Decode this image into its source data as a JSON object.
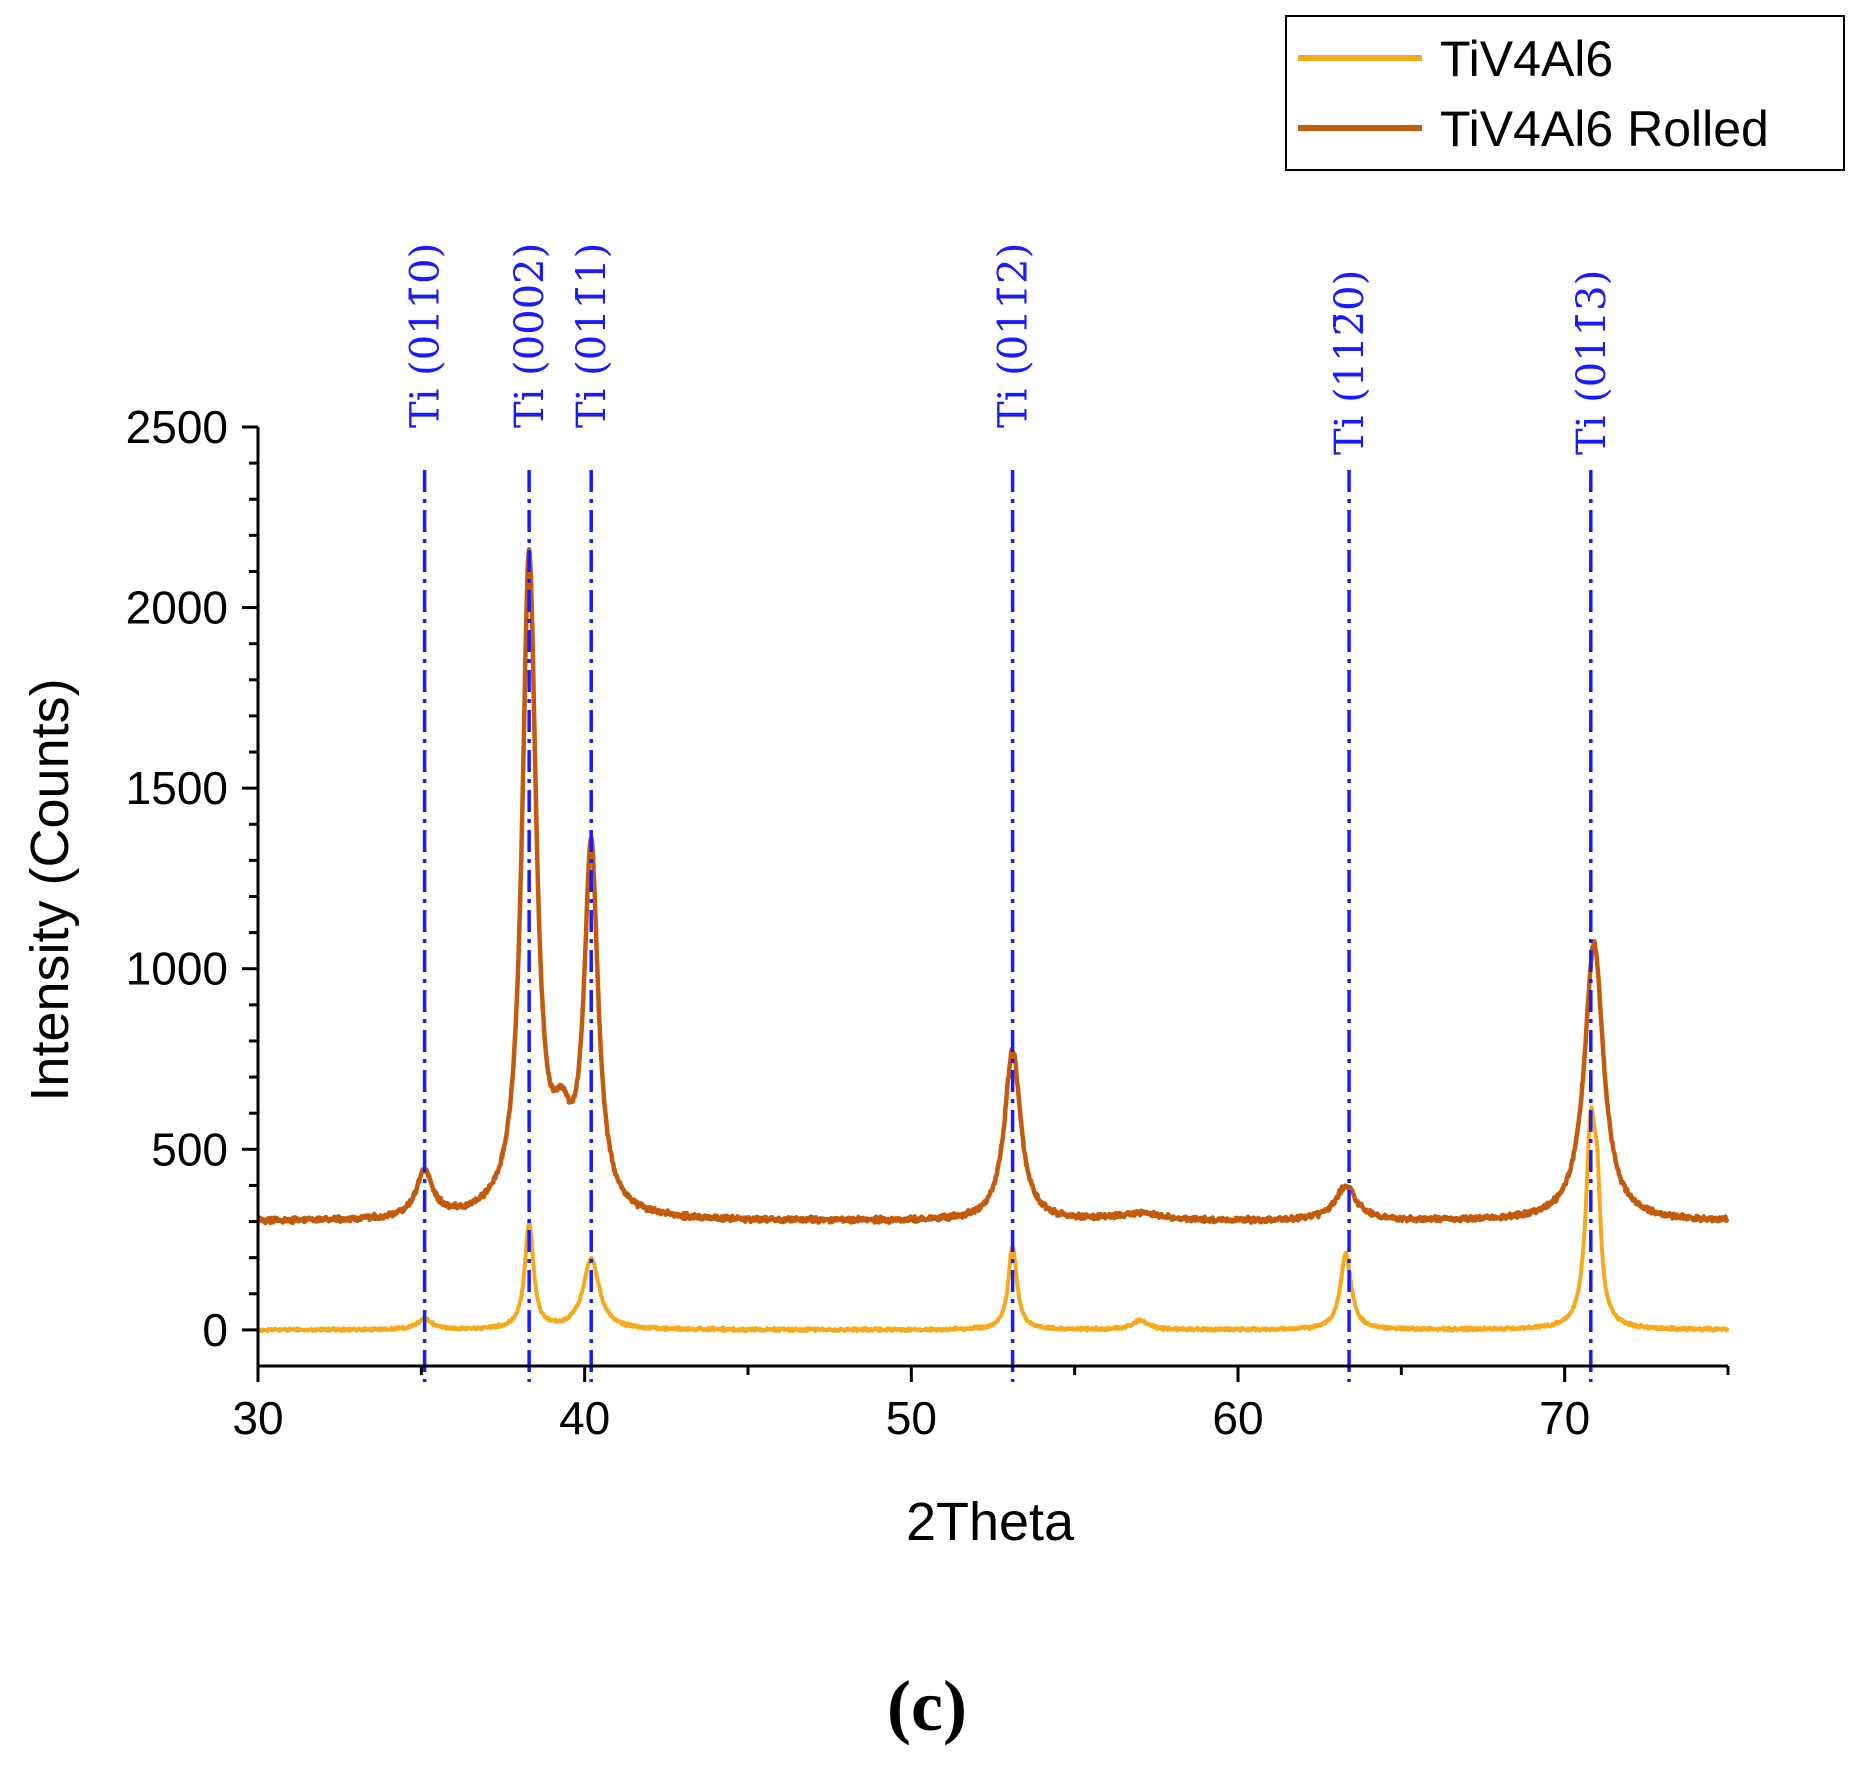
{
  "chart_data": {
    "type": "line",
    "title": "",
    "xlabel": "2Theta",
    "ylabel": "Intensity (Counts)",
    "xlim": [
      30,
      75
    ],
    "ylim": [
      -100,
      2500
    ],
    "x_ticks": [
      30,
      40,
      50,
      60,
      70
    ],
    "x_tick_labels": [
      "30",
      "40",
      "50",
      "60",
      "70"
    ],
    "y_ticks": [
      0,
      500,
      1000,
      1500,
      2000,
      2500
    ],
    "y_tick_labels": [
      "0",
      "500",
      "1000",
      "1500",
      "2000",
      "2500"
    ],
    "grid": false,
    "legend_position": "top-right",
    "panel_label": "(c)",
    "series": [
      {
        "name": "TiV4Al6",
        "color": "#f5a91b",
        "baseline": 0,
        "peaks": [
          {
            "x": 35.1,
            "height": 30,
            "width": 0.25
          },
          {
            "x": 38.3,
            "height": 290,
            "width": 0.16
          },
          {
            "x": 40.2,
            "height": 195,
            "width": 0.3
          },
          {
            "x": 53.1,
            "height": 230,
            "width": 0.16
          },
          {
            "x": 57.0,
            "height": 25,
            "width": 0.3
          },
          {
            "x": 63.3,
            "height": 210,
            "width": 0.2
          },
          {
            "x": 70.8,
            "height": 540,
            "width": 0.18
          },
          {
            "x": 71.0,
            "height": 260,
            "width": 0.12
          }
        ]
      },
      {
        "name": "TiV4Al6 Rolled",
        "color": "#c45a0c",
        "baseline": 300,
        "peaks": [
          {
            "x": 35.1,
            "height": 130,
            "width": 0.3
          },
          {
            "x": 38.3,
            "height": 1820,
            "width": 0.26
          },
          {
            "x": 39.3,
            "height": 180,
            "width": 0.35
          },
          {
            "x": 40.2,
            "height": 1000,
            "width": 0.26
          },
          {
            "x": 53.1,
            "height": 470,
            "width": 0.3
          },
          {
            "x": 57.0,
            "height": 20,
            "width": 0.8
          },
          {
            "x": 63.3,
            "height": 95,
            "width": 0.4
          },
          {
            "x": 70.9,
            "height": 770,
            "width": 0.35
          }
        ]
      }
    ],
    "reference_lines": [
      {
        "x": 35.1,
        "label": "Ti (011̄0)"
      },
      {
        "x": 38.3,
        "label": "Ti (0002)"
      },
      {
        "x": 40.2,
        "label": "Ti (011̄1)"
      },
      {
        "x": 53.1,
        "label": "Ti (011̄2)"
      },
      {
        "x": 63.4,
        "label": "Ti (112̄0)"
      },
      {
        "x": 70.8,
        "label": "Ti (011̄3)"
      }
    ],
    "reference_line_color": "#1a1aff"
  }
}
